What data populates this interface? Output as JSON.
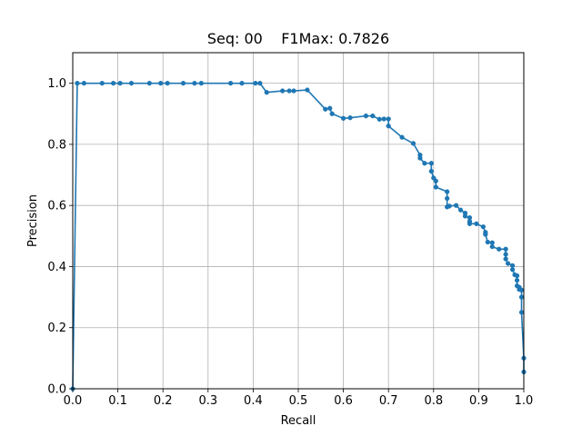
{
  "chart_data": {
    "type": "line",
    "title": "Seq: 00    F1Max: 0.7826",
    "xlabel": "Recall",
    "ylabel": "Precision",
    "xlim": [
      0.0,
      1.0
    ],
    "ylim": [
      0.0,
      1.1
    ],
    "xticks": [
      "0.0",
      "0.1",
      "0.2",
      "0.3",
      "0.4",
      "0.5",
      "0.6",
      "0.7",
      "0.8",
      "0.9",
      "1.0"
    ],
    "yticks": [
      "0.0",
      "0.2",
      "0.4",
      "0.6",
      "0.8",
      "1.0"
    ],
    "grid": true,
    "marker": "circle",
    "line_color": "#1f77b4",
    "series": [
      {
        "x": [
          0.0,
          0.01,
          0.025,
          0.065,
          0.09,
          0.105,
          0.13,
          0.17,
          0.195,
          0.21,
          0.245,
          0.27,
          0.285,
          0.35,
          0.375,
          0.405,
          0.415,
          0.43,
          0.465,
          0.48,
          0.49,
          0.52,
          0.56,
          0.57,
          0.575,
          0.6,
          0.615,
          0.65,
          0.665,
          0.68,
          0.69,
          0.7,
          0.7,
          0.73,
          0.755,
          0.77,
          0.77,
          0.78,
          0.795,
          0.795,
          0.8,
          0.805,
          0.805,
          0.83,
          0.83,
          0.83,
          0.835,
          0.85,
          0.86,
          0.87,
          0.87,
          0.88,
          0.88,
          0.88,
          0.895,
          0.91,
          0.915,
          0.915,
          0.92,
          0.93,
          0.93,
          0.945,
          0.96,
          0.96,
          0.96,
          0.965,
          0.975,
          0.975,
          0.98,
          0.985,
          0.985,
          0.985,
          0.99,
          0.99,
          0.995,
          0.995,
          0.995,
          1.0,
          1.0
        ],
        "y": [
          0.0,
          1.0,
          1.0,
          1.0,
          1.0,
          1.0,
          1.0,
          1.0,
          1.0,
          1.0,
          1.0,
          1.0,
          1.0,
          1.0,
          1.0,
          1.0,
          1.0,
          0.97,
          0.975,
          0.975,
          0.975,
          0.978,
          0.915,
          0.918,
          0.9,
          0.885,
          0.887,
          0.893,
          0.893,
          0.882,
          0.883,
          0.883,
          0.86,
          0.823,
          0.803,
          0.765,
          0.755,
          0.738,
          0.738,
          0.712,
          0.69,
          0.68,
          0.66,
          0.645,
          0.623,
          0.595,
          0.598,
          0.6,
          0.585,
          0.575,
          0.565,
          0.56,
          0.548,
          0.54,
          0.54,
          0.53,
          0.512,
          0.505,
          0.48,
          0.478,
          0.465,
          0.457,
          0.457,
          0.44,
          0.425,
          0.41,
          0.403,
          0.39,
          0.373,
          0.37,
          0.355,
          0.337,
          0.332,
          0.325,
          0.323,
          0.3,
          0.25,
          0.1,
          0.055
        ]
      }
    ]
  }
}
